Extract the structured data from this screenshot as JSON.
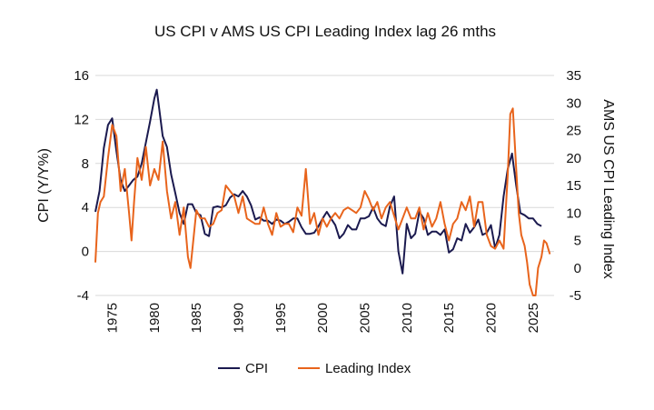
{
  "chart_data": {
    "type": "line",
    "title": "US CPI v AMS US CPI Leading Index lag 26 mths",
    "xlabel": "",
    "ylabel": "CPI (Y/Y%)",
    "y2label": "AMS US CPI Leading Index",
    "xlim": [
      1973,
      2027.5
    ],
    "ylim": [
      -4,
      16
    ],
    "y2lim": [
      -5,
      35
    ],
    "x_ticks": [
      "1975",
      "1980",
      "1985",
      "1990",
      "1995",
      "2000",
      "2005",
      "2010",
      "2015",
      "2020",
      "2025"
    ],
    "y_ticks": [
      "-4",
      "0",
      "4",
      "8",
      "12",
      "16"
    ],
    "y2_ticks": [
      "-5",
      "0",
      "5",
      "10",
      "15",
      "20",
      "25",
      "30",
      "35"
    ],
    "grid": "horizontal",
    "legend": "bottom-center",
    "series": [
      {
        "name": "CPI",
        "axis": "left",
        "color": "#1b1a4f",
        "x": [
          1973.0,
          1973.5,
          1974.0,
          1974.5,
          1975.0,
          1975.5,
          1976.0,
          1976.5,
          1977.0,
          1977.5,
          1978.0,
          1978.5,
          1979.0,
          1979.5,
          1980.0,
          1980.3,
          1980.6,
          1981.0,
          1981.5,
          1982.0,
          1982.5,
          1983.0,
          1983.5,
          1984.0,
          1984.5,
          1985.0,
          1985.5,
          1986.0,
          1986.5,
          1987.0,
          1987.5,
          1988.0,
          1988.5,
          1989.0,
          1989.5,
          1990.0,
          1990.5,
          1991.0,
          1991.5,
          1992.0,
          1992.5,
          1993.0,
          1993.5,
          1994.0,
          1994.5,
          1995.0,
          1995.5,
          1996.0,
          1996.5,
          1997.0,
          1997.5,
          1998.0,
          1998.5,
          1999.0,
          1999.5,
          2000.0,
          2000.5,
          2001.0,
          2001.5,
          2002.0,
          2002.5,
          2003.0,
          2003.5,
          2004.0,
          2004.5,
          2005.0,
          2005.5,
          2006.0,
          2006.5,
          2007.0,
          2007.5,
          2008.0,
          2008.5,
          2009.0,
          2009.5,
          2010.0,
          2010.5,
          2011.0,
          2011.5,
          2012.0,
          2012.5,
          2013.0,
          2013.5,
          2014.0,
          2014.5,
          2015.0,
          2015.5,
          2016.0,
          2016.5,
          2017.0,
          2017.5,
          2018.0,
          2018.5,
          2019.0,
          2019.5,
          2020.0,
          2020.5,
          2021.0,
          2021.5,
          2022.0,
          2022.5,
          2023.0,
          2023.5,
          2024.0,
          2024.5,
          2025.0,
          2025.5,
          2026.0
        ],
        "values": [
          3.6,
          5.5,
          9.4,
          11.5,
          12.1,
          9.1,
          6.5,
          5.5,
          6.0,
          6.5,
          6.8,
          8.0,
          9.9,
          11.8,
          13.9,
          14.7,
          12.9,
          10.5,
          9.5,
          7.0,
          5.3,
          3.5,
          2.5,
          4.3,
          4.3,
          3.5,
          3.3,
          1.6,
          1.4,
          4.0,
          4.1,
          4.0,
          4.2,
          4.9,
          5.2,
          5.0,
          5.5,
          5.0,
          4.2,
          2.9,
          3.1,
          2.8,
          2.8,
          2.5,
          2.9,
          2.8,
          2.5,
          2.7,
          3.0,
          3.0,
          2.2,
          1.6,
          1.6,
          1.7,
          2.3,
          3.0,
          3.6,
          3.0,
          2.4,
          1.2,
          1.6,
          2.4,
          2.0,
          2.0,
          3.0,
          3.0,
          3.2,
          4.0,
          3.0,
          2.5,
          2.3,
          4.1,
          5.0,
          0.0,
          -2.0,
          2.5,
          1.2,
          1.6,
          3.6,
          3.0,
          1.5,
          1.8,
          1.8,
          1.5,
          2.0,
          -0.1,
          0.2,
          1.2,
          1.0,
          2.5,
          1.7,
          2.2,
          2.9,
          1.5,
          1.7,
          2.4,
          0.3,
          1.5,
          5.0,
          7.5,
          8.9,
          6.0,
          3.5,
          3.3,
          3.0,
          3.0,
          2.5,
          2.3
        ]
      },
      {
        "name": "Leading Index",
        "axis": "right",
        "color": "#e8641c",
        "x": [
          1973.0,
          1973.3,
          1973.6,
          1974.0,
          1974.5,
          1975.0,
          1975.5,
          1976.0,
          1976.5,
          1977.0,
          1977.3,
          1977.6,
          1978.0,
          1978.5,
          1979.0,
          1979.5,
          1980.0,
          1980.5,
          1981.0,
          1981.5,
          1982.0,
          1982.5,
          1983.0,
          1983.5,
          1984.0,
          1984.3,
          1984.6,
          1985.0,
          1985.5,
          1986.0,
          1986.5,
          1987.0,
          1987.5,
          1988.0,
          1988.5,
          1989.0,
          1989.5,
          1990.0,
          1990.5,
          1991.0,
          1991.5,
          1992.0,
          1992.5,
          1993.0,
          1993.5,
          1994.0,
          1994.5,
          1995.0,
          1995.5,
          1996.0,
          1996.5,
          1997.0,
          1997.5,
          1998.0,
          1998.5,
          1999.0,
          1999.5,
          2000.0,
          2000.5,
          2001.0,
          2001.5,
          2002.0,
          2002.5,
          2003.0,
          2003.5,
          2004.0,
          2004.5,
          2005.0,
          2005.5,
          2006.0,
          2006.5,
          2007.0,
          2007.5,
          2008.0,
          2008.5,
          2009.0,
          2009.5,
          2010.0,
          2010.5,
          2011.0,
          2011.5,
          2012.0,
          2012.5,
          2013.0,
          2013.5,
          2014.0,
          2014.5,
          2015.0,
          2015.5,
          2016.0,
          2016.5,
          2017.0,
          2017.5,
          2018.0,
          2018.5,
          2019.0,
          2019.5,
          2020.0,
          2020.5,
          2021.0,
          2021.5,
          2022.0,
          2022.3,
          2022.6,
          2023.0,
          2023.3,
          2023.6,
          2024.0,
          2024.3,
          2024.6,
          2025.0,
          2025.3,
          2025.6,
          2026.0,
          2026.3,
          2026.6,
          2027.0
        ],
        "values": [
          1.0,
          10.0,
          12.0,
          13.0,
          20.0,
          26.0,
          24.0,
          14.0,
          18.0,
          10.0,
          5.0,
          12.0,
          20.0,
          16.0,
          22.0,
          15.0,
          18.0,
          16.0,
          23.0,
          14.0,
          9.0,
          12.0,
          6.0,
          11.0,
          2.0,
          0.0,
          4.5,
          10.5,
          9.0,
          9.0,
          7.5,
          8.0,
          10.0,
          10.5,
          15.0,
          14.0,
          13.0,
          10.0,
          13.0,
          9.0,
          8.5,
          8.0,
          8.0,
          11.0,
          8.0,
          6.0,
          10.0,
          7.5,
          8.0,
          8.0,
          6.5,
          11.0,
          9.5,
          18.0,
          8.0,
          10.0,
          6.0,
          9.0,
          7.5,
          9.0,
          10.0,
          9.0,
          10.5,
          11.0,
          10.5,
          10.0,
          11.0,
          14.0,
          12.5,
          10.5,
          12.0,
          9.0,
          11.0,
          12.0,
          9.5,
          7.0,
          9.0,
          11.0,
          9.0,
          9.0,
          11.0,
          7.0,
          10.0,
          7.5,
          9.0,
          12.0,
          8.0,
          5.0,
          8.0,
          9.0,
          12.0,
          10.5,
          13.0,
          7.5,
          12.0,
          12.0,
          6.0,
          4.0,
          3.5,
          5.0,
          3.5,
          17.0,
          28.0,
          29.0,
          18.0,
          10.0,
          6.0,
          4.0,
          1.0,
          -3.0,
          -5.0,
          -5.0,
          0.0,
          2.0,
          5.0,
          4.5,
          2.5
        ]
      }
    ]
  }
}
